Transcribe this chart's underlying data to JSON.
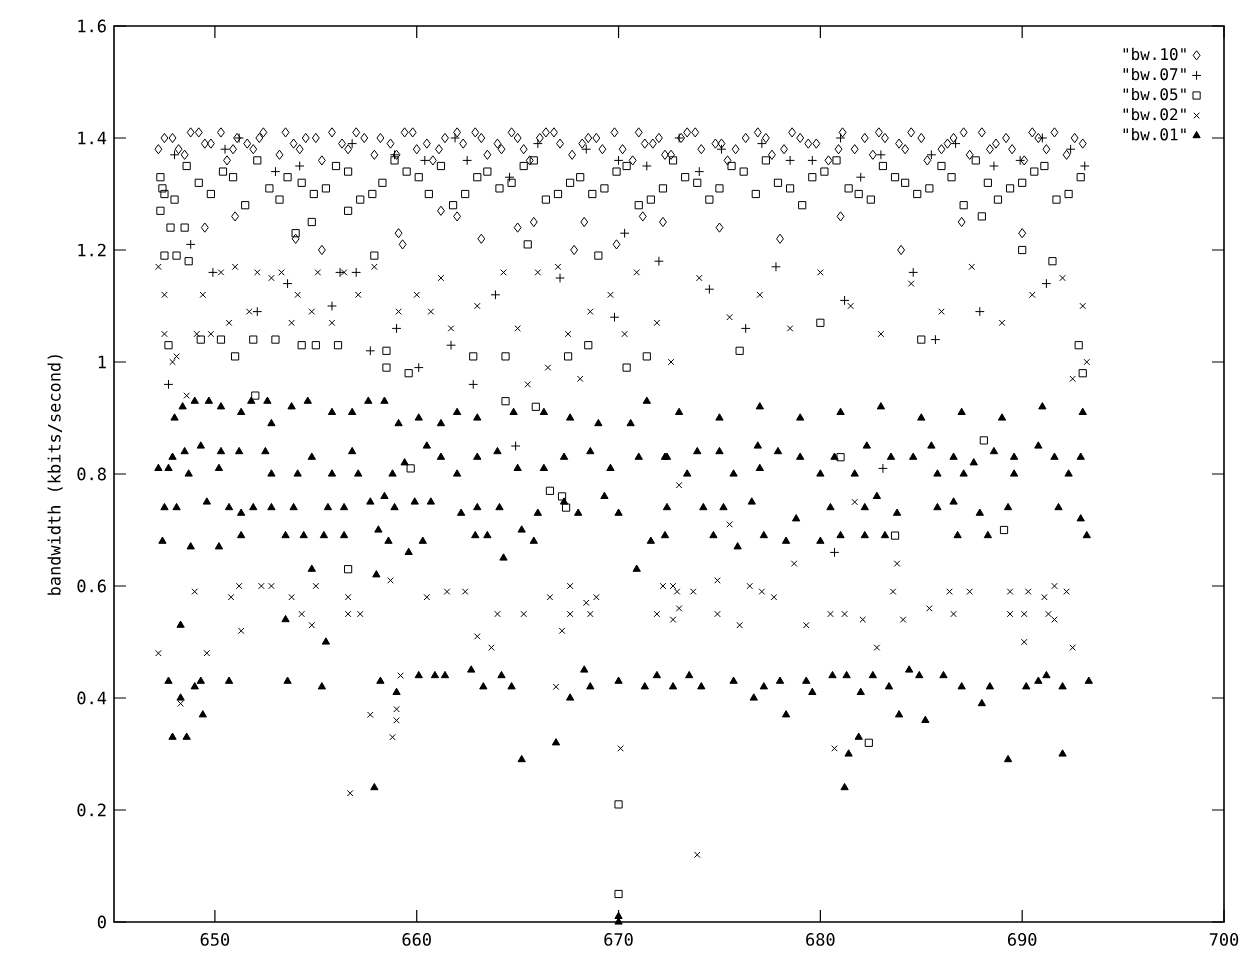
{
  "chart_data": {
    "type": "scatter",
    "ylabel": "bandwidth (kbits/second)",
    "xlim": [
      645,
      700
    ],
    "ylim": [
      0,
      1.6
    ],
    "xticks": [
      650,
      660,
      670,
      680,
      690,
      700
    ],
    "yticks": [
      0,
      0.2,
      0.4,
      0.6,
      0.8,
      1,
      1.2,
      1.4,
      1.6
    ],
    "grid": false,
    "legend": "top right",
    "series": [
      {
        "name": "\"bw.10\"",
        "color": "#000000",
        "marker": "diamond",
        "x": [
          649.5,
          651.0,
          654.0,
          655.3,
          659.1,
          659.3,
          661.2,
          662.0,
          663.2,
          665.0,
          665.8,
          667.8,
          668.3,
          669.9,
          671.2,
          672.2,
          675.0,
          678.0,
          681.0,
          684.0,
          687.0,
          690.0,
          647.2,
          647.9,
          648.5,
          649.2,
          649.8,
          650.6,
          651.1,
          651.9,
          652.4,
          653.2,
          653.9,
          654.5,
          655.3,
          655.8,
          656.6,
          657.4,
          657.9,
          658.7,
          659.4,
          660.0,
          660.8,
          661.4,
          662.3,
          662.9,
          663.5,
          664.2,
          665.0,
          665.6,
          666.4,
          667.1,
          667.7,
          668.5,
          669.2,
          669.8,
          670.7,
          671.3,
          672.0,
          672.6,
          673.4,
          674.1,
          674.8,
          675.4,
          676.3,
          676.9,
          677.6,
          678.2,
          679.0,
          679.8,
          680.4,
          681.1,
          681.7,
          682.6,
          683.2,
          683.9,
          684.5,
          685.3,
          686.0,
          686.6,
          687.4,
          688.0,
          688.7,
          689.5,
          690.1,
          690.8,
          691.6,
          692.2,
          693.0,
          647.5,
          648.2,
          648.8,
          649.5,
          650.3,
          650.9,
          651.6,
          652.2,
          653.5,
          654.2,
          655.0,
          656.3,
          657.0,
          658.2,
          659.0,
          659.8,
          660.5,
          661.1,
          662.0,
          663.2,
          664.0,
          664.7,
          665.3,
          666.1,
          666.8,
          668.2,
          668.9,
          670.2,
          671.0,
          671.7,
          672.3,
          673.1,
          673.8,
          675.1,
          675.8,
          677.3,
          678.6,
          679.4,
          680.9,
          682.2,
          682.9,
          684.2,
          685.0,
          686.3,
          687.1,
          688.4,
          689.2,
          690.5,
          691.2,
          692.6
        ],
        "values": [
          1.24,
          1.26,
          1.22,
          1.2,
          1.23,
          1.21,
          1.27,
          1.26,
          1.22,
          1.24,
          1.25,
          1.2,
          1.25,
          1.21,
          1.26,
          1.25,
          1.24,
          1.22,
          1.26,
          1.2,
          1.25,
          1.23,
          1.38,
          1.4,
          1.37,
          1.41,
          1.39,
          1.36,
          1.4,
          1.38,
          1.41,
          1.37,
          1.39,
          1.4,
          1.36,
          1.41,
          1.38,
          1.4,
          1.37,
          1.39,
          1.41,
          1.38,
          1.36,
          1.4,
          1.39,
          1.41,
          1.37,
          1.38,
          1.4,
          1.36,
          1.41,
          1.39,
          1.37,
          1.4,
          1.38,
          1.41,
          1.36,
          1.39,
          1.4,
          1.37,
          1.41,
          1.38,
          1.39,
          1.36,
          1.4,
          1.41,
          1.37,
          1.38,
          1.4,
          1.39,
          1.36,
          1.41,
          1.38,
          1.37,
          1.4,
          1.39,
          1.41,
          1.36,
          1.38,
          1.4,
          1.37,
          1.41,
          1.39,
          1.38,
          1.36,
          1.4,
          1.41,
          1.37,
          1.39,
          1.4,
          1.38,
          1.41,
          1.39,
          1.41,
          1.38,
          1.39,
          1.4,
          1.41,
          1.38,
          1.4,
          1.39,
          1.41,
          1.4,
          1.37,
          1.41,
          1.39,
          1.38,
          1.41,
          1.4,
          1.39,
          1.41,
          1.38,
          1.4,
          1.41,
          1.39,
          1.4,
          1.38,
          1.41,
          1.39,
          1.37,
          1.4,
          1.41,
          1.39,
          1.38,
          1.4,
          1.41,
          1.39,
          1.38,
          1.4,
          1.41,
          1.38,
          1.4,
          1.39,
          1.41,
          1.38,
          1.4,
          1.41,
          1.38,
          1.4
        ]
      },
      {
        "name": "\"bw.07\"",
        "color": "#000000",
        "marker": "plus",
        "x": [
          648.8,
          649.9,
          652.1,
          656.2,
          657.0,
          657.7,
          660.1,
          661.7,
          662.8,
          670.3,
          664.9,
          647.7,
          672.0,
          683.1,
          680.7,
          653.6,
          655.8,
          659.0,
          663.9,
          667.1,
          669.8,
          674.5,
          677.8,
          681.2,
          684.6,
          687.9,
          691.2,
          676.3,
          685.7,
          650.5,
          654.2,
          658.9,
          662.5,
          666.0,
          671.4,
          675.1,
          679.6,
          683.0,
          688.6,
          692.4,
          648.0,
          651.2,
          653.0,
          656.8,
          660.4,
          661.9,
          664.6,
          668.4,
          670.0,
          673.0,
          674.0,
          677.1,
          678.5,
          681.0,
          682.0,
          685.5,
          686.7,
          689.9,
          691.0,
          693.1
        ],
        "values": [
          1.21,
          1.16,
          1.09,
          1.16,
          1.16,
          1.02,
          0.99,
          1.03,
          0.96,
          1.23,
          0.85,
          0.96,
          1.18,
          0.81,
          0.66,
          1.14,
          1.1,
          1.06,
          1.12,
          1.15,
          1.08,
          1.13,
          1.17,
          1.11,
          1.16,
          1.09,
          1.14,
          1.06,
          1.04,
          1.38,
          1.35,
          1.37,
          1.36,
          1.39,
          1.35,
          1.38,
          1.36,
          1.37,
          1.35,
          1.38,
          1.37,
          1.4,
          1.34,
          1.39,
          1.36,
          1.4,
          1.33,
          1.38,
          1.36,
          1.4,
          1.34,
          1.39,
          1.36,
          1.4,
          1.33,
          1.37,
          1.39,
          1.36,
          1.4,
          1.35
        ]
      },
      {
        "name": "\"bw.05\"",
        "color": "#000000",
        "marker": "square",
        "x": [
          647.3,
          647.5,
          647.3,
          647.8,
          648.5,
          647.5,
          648.1,
          648.7,
          647.7,
          649.3,
          650.3,
          651.0,
          651.9,
          653.0,
          654.3,
          655.0,
          656.1,
          652.0,
          654.0,
          654.8,
          656.6,
          657.9,
          658.5,
          659.6,
          658.5,
          662.8,
          664.4,
          665.5,
          667.5,
          668.5,
          669.0,
          670.4,
          671.4,
          664.4,
          665.9,
          656.6,
          659.7,
          666.6,
          667.2,
          667.4,
          670.0,
          670.0,
          681.0,
          683.7,
          689.1,
          682.4,
          688.1,
          676.0,
          680.0,
          685.0,
          690.0,
          691.5,
          692.8,
          693.0,
          688.0,
          648.0,
          649.2,
          650.4,
          651.5,
          652.7,
          653.6,
          654.9,
          656.0,
          657.2,
          658.3,
          659.5,
          660.6,
          661.8,
          663.0,
          664.1,
          665.3,
          666.4,
          667.6,
          668.7,
          669.9,
          671.0,
          672.2,
          673.3,
          674.5,
          675.6,
          676.8,
          677.9,
          679.1,
          680.2,
          681.4,
          682.5,
          683.7,
          684.8,
          686.0,
          687.1,
          688.3,
          689.4,
          690.6,
          691.7,
          692.9,
          647.4,
          648.6,
          649.8,
          650.9,
          652.1,
          653.2,
          654.3,
          655.5,
          656.6,
          657.8,
          658.9,
          660.1,
          661.2,
          662.4,
          663.5,
          664.7,
          665.8,
          667.0,
          668.1,
          669.3,
          670.4,
          671.6,
          672.7,
          673.9,
          675.0,
          676.2,
          677.3,
          678.5,
          679.6,
          680.8,
          681.9,
          683.1,
          684.2,
          685.4,
          686.5,
          687.7,
          688.8,
          690.0,
          691.1,
          692.3
        ],
        "values": [
          1.27,
          1.3,
          1.33,
          1.24,
          1.24,
          1.19,
          1.19,
          1.18,
          1.03,
          1.04,
          1.04,
          1.01,
          1.04,
          1.04,
          1.03,
          1.03,
          1.03,
          0.94,
          1.23,
          1.25,
          1.27,
          1.19,
          0.99,
          0.98,
          1.02,
          1.01,
          1.01,
          1.21,
          1.01,
          1.03,
          1.19,
          0.99,
          1.01,
          0.93,
          0.92,
          0.63,
          0.81,
          0.77,
          0.76,
          0.74,
          0.21,
          0.05,
          0.83,
          0.69,
          0.7,
          0.32,
          0.86,
          1.02,
          1.07,
          1.04,
          1.2,
          1.18,
          1.03,
          0.98,
          1.26,
          1.29,
          1.32,
          1.34,
          1.28,
          1.31,
          1.33,
          1.3,
          1.35,
          1.29,
          1.32,
          1.34,
          1.3,
          1.28,
          1.33,
          1.31,
          1.35,
          1.29,
          1.32,
          1.3,
          1.34,
          1.28,
          1.31,
          1.33,
          1.29,
          1.35,
          1.3,
          1.32,
          1.28,
          1.34,
          1.31,
          1.29,
          1.33,
          1.3,
          1.35,
          1.28,
          1.32,
          1.31,
          1.34,
          1.29,
          1.33,
          1.31,
          1.35,
          1.3,
          1.33,
          1.36,
          1.29,
          1.32,
          1.31,
          1.34,
          1.3,
          1.36,
          1.33,
          1.35,
          1.3,
          1.34,
          1.32,
          1.36,
          1.3,
          1.33,
          1.31,
          1.35,
          1.29,
          1.36,
          1.32,
          1.31,
          1.34,
          1.36,
          1.31,
          1.33,
          1.36,
          1.3,
          1.35,
          1.32,
          1.31,
          1.33,
          1.36,
          1.29,
          1.32,
          1.35,
          1.3
        ]
      },
      {
        "name": "\"bw.02\"",
        "color": "#000000",
        "marker": "cross",
        "x": [
          647.2,
          649.6,
          649.0,
          650.8,
          651.2,
          651.3,
          652.3,
          652.8,
          653.8,
          654.3,
          654.8,
          655.0,
          656.6,
          656.6,
          657.2,
          658.7,
          660.5,
          661.5,
          662.4,
          663.0,
          663.7,
          664.0,
          665.3,
          666.6,
          667.6,
          667.2,
          667.6,
          668.4,
          668.9,
          668.6,
          672.7,
          672.7,
          648.3,
          659.2,
          666.9,
          659.0,
          659.0,
          658.8,
          657.7,
          656.7,
          670.1,
          673.0,
          681.7,
          675.5,
          678.7,
          683.8,
          672.2,
          672.9,
          673.7,
          674.9,
          676.5,
          677.1,
          677.7,
          671.9,
          673.0,
          674.9,
          676.0,
          679.3,
          680.5,
          681.2,
          682.1,
          684.1,
          685.4,
          686.6,
          683.6,
          686.4,
          687.4,
          689.4,
          690.3,
          691.1,
          691.6,
          692.2,
          689.4,
          690.1,
          691.3,
          691.6,
          682.8,
          690.1,
          692.5,
          680.7,
          673.9,
          647.2,
          647.5,
          647.5,
          648.1,
          647.9,
          648.6,
          649.1,
          649.4,
          649.8,
          650.3,
          650.7,
          651.0,
          651.7,
          652.1,
          652.8,
          653.3,
          653.8,
          654.1,
          654.8,
          655.1,
          655.8,
          656.4,
          657.1,
          657.9,
          659.1,
          660.0,
          660.7,
          661.2,
          661.7,
          663.0,
          664.3,
          665.0,
          666.0,
          666.5,
          667.0,
          667.5,
          668.1,
          668.6,
          669.6,
          670.3,
          670.9,
          671.9,
          672.6,
          665.5,
          674.0,
          675.5,
          677.0,
          678.5,
          680.0,
          681.5,
          683.0,
          684.5,
          686.0,
          687.5,
          689.0,
          690.5,
          692.0,
          693.0,
          693.2,
          692.5
        ],
        "values": [
          0.48,
          0.48,
          0.59,
          0.58,
          0.6,
          0.52,
          0.6,
          0.6,
          0.58,
          0.55,
          0.53,
          0.6,
          0.58,
          0.55,
          0.55,
          0.61,
          0.58,
          0.59,
          0.59,
          0.51,
          0.49,
          0.55,
          0.55,
          0.58,
          0.6,
          0.52,
          0.55,
          0.57,
          0.58,
          0.55,
          0.6,
          0.54,
          0.39,
          0.44,
          0.42,
          0.38,
          0.36,
          0.33,
          0.37,
          0.23,
          0.31,
          0.78,
          0.75,
          0.71,
          0.64,
          0.64,
          0.6,
          0.59,
          0.59,
          0.61,
          0.6,
          0.59,
          0.58,
          0.55,
          0.56,
          0.55,
          0.53,
          0.53,
          0.55,
          0.55,
          0.54,
          0.54,
          0.56,
          0.55,
          0.59,
          0.59,
          0.59,
          0.59,
          0.59,
          0.58,
          0.6,
          0.59,
          0.55,
          0.55,
          0.55,
          0.54,
          0.49,
          0.5,
          0.49,
          0.31,
          0.12,
          1.17,
          1.12,
          1.05,
          1.01,
          1.0,
          0.94,
          1.05,
          1.12,
          1.05,
          1.16,
          1.07,
          1.17,
          1.09,
          1.16,
          1.15,
          1.16,
          1.07,
          1.12,
          1.09,
          1.16,
          1.07,
          1.16,
          1.12,
          1.17,
          1.09,
          1.12,
          1.09,
          1.15,
          1.06,
          1.1,
          1.16,
          1.06,
          1.16,
          0.99,
          1.17,
          1.05,
          0.97,
          1.09,
          1.12,
          1.05,
          1.16,
          1.07,
          1.0,
          0.96,
          1.15,
          1.08,
          1.12,
          1.06,
          1.16,
          1.1,
          1.05,
          1.14,
          1.09,
          1.17,
          1.07,
          1.12,
          1.15,
          1.1,
          1.0,
          0.97
        ]
      },
      {
        "name": "\"bw.01\"",
        "color": "#000000",
        "marker": "triangle",
        "x": [
          647.2,
          647.7,
          647.9,
          648.5,
          648.7,
          649.3,
          650.2,
          650.3,
          651.2,
          652.5,
          652.8,
          654.1,
          654.8,
          655.8,
          656.8,
          657.1,
          658.8,
          659.4,
          660.5,
          661.2,
          662.0,
          663.0,
          664.0,
          665.0,
          666.3,
          667.3,
          668.6,
          669.6,
          671.0,
          672.3,
          672.4,
          673.9,
          675.0,
          676.9,
          677.9,
          679.0,
          680.7,
          682.3,
          683.5,
          684.6,
          685.5,
          686.6,
          687.6,
          688.6,
          689.6,
          690.8,
          691.6,
          692.9,
          673.4,
          675.7,
          677.0,
          680.0,
          681.7,
          685.8,
          687.1,
          689.6,
          692.3,
          647.5,
          648.1,
          649.6,
          650.7,
          651.3,
          651.9,
          652.8,
          653.9,
          655.6,
          656.4,
          657.7,
          658.4,
          658.9,
          659.9,
          660.7,
          662.2,
          663.0,
          664.1,
          666.0,
          667.3,
          668.0,
          669.3,
          670.0,
          672.4,
          674.2,
          675.2,
          676.6,
          678.8,
          680.5,
          682.2,
          682.8,
          683.8,
          685.8,
          686.6,
          687.9,
          689.3,
          691.8,
          692.9,
          647.4,
          648.8,
          650.2,
          651.3,
          653.5,
          654.4,
          655.4,
          656.4,
          658.1,
          658.6,
          659.6,
          660.3,
          662.9,
          663.5,
          664.3,
          665.2,
          665.8,
          671.6,
          672.3,
          674.7,
          675.9,
          677.2,
          678.3,
          680.0,
          681.0,
          682.2,
          683.2,
          686.8,
          688.3,
          693.2,
          654.8,
          658.0,
          655.5,
          648.3,
          653.5,
          670.9,
          647.7,
          648.3,
          649.0,
          649.3,
          649.4,
          647.9,
          648.6,
          650.7,
          653.6,
          655.3,
          658.2,
          659.0,
          660.1,
          660.9,
          661.4,
          662.7,
          663.3,
          664.2,
          664.7,
          665.2,
          666.9,
          667.6,
          668.3,
          668.6,
          670.0,
          671.3,
          671.9,
          657.9,
          670.0,
          670.0,
          672.7,
          673.5,
          674.1,
          675.7,
          676.7,
          677.2,
          678.0,
          679.3,
          679.6,
          680.6,
          681.3,
          682.0,
          682.6,
          683.4,
          684.4,
          684.9,
          686.1,
          687.0,
          688.0,
          688.4,
          690.2,
          690.8,
          691.2,
          692.0,
          693.3,
          678.3,
          683.9,
          685.2,
          681.9,
          681.4,
          689.3,
          692.0,
          681.2,
          648.0,
          648.4,
          649.0,
          649.7,
          650.3,
          651.3,
          651.8,
          652.6,
          652.8,
          653.8,
          654.6,
          655.8,
          656.8,
          657.6,
          658.4,
          659.1,
          660.1,
          661.2,
          662.0,
          663.0,
          664.8,
          666.3,
          667.6,
          669.0,
          670.6,
          671.4,
          673.0,
          675.0,
          677.0,
          679.0,
          681.0,
          683.0,
          685.0,
          687.0,
          689.0,
          691.0,
          693.0
        ],
        "values": [
          0.81,
          0.81,
          0.83,
          0.84,
          0.8,
          0.85,
          0.81,
          0.84,
          0.84,
          0.84,
          0.8,
          0.8,
          0.83,
          0.8,
          0.84,
          0.8,
          0.8,
          0.82,
          0.85,
          0.83,
          0.8,
          0.83,
          0.84,
          0.81,
          0.81,
          0.83,
          0.84,
          0.81,
          0.83,
          0.83,
          0.83,
          0.84,
          0.84,
          0.85,
          0.84,
          0.83,
          0.83,
          0.85,
          0.83,
          0.83,
          0.85,
          0.83,
          0.82,
          0.84,
          0.83,
          0.85,
          0.83,
          0.83,
          0.8,
          0.8,
          0.81,
          0.8,
          0.8,
          0.8,
          0.8,
          0.8,
          0.8,
          0.74,
          0.74,
          0.75,
          0.74,
          0.73,
          0.74,
          0.74,
          0.74,
          0.74,
          0.74,
          0.75,
          0.76,
          0.74,
          0.75,
          0.75,
          0.73,
          0.74,
          0.74,
          0.73,
          0.75,
          0.73,
          0.76,
          0.73,
          0.74,
          0.74,
          0.74,
          0.75,
          0.72,
          0.74,
          0.74,
          0.76,
          0.73,
          0.74,
          0.75,
          0.73,
          0.74,
          0.74,
          0.72,
          0.68,
          0.67,
          0.67,
          0.69,
          0.69,
          0.69,
          0.69,
          0.69,
          0.7,
          0.68,
          0.66,
          0.68,
          0.69,
          0.69,
          0.65,
          0.7,
          0.68,
          0.68,
          0.69,
          0.69,
          0.67,
          0.69,
          0.68,
          0.68,
          0.69,
          0.69,
          0.69,
          0.69,
          0.69,
          0.69,
          0.63,
          0.62,
          0.5,
          0.53,
          0.54,
          0.63,
          0.43,
          0.4,
          0.42,
          0.43,
          0.37,
          0.33,
          0.33,
          0.43,
          0.43,
          0.42,
          0.43,
          0.41,
          0.44,
          0.44,
          0.44,
          0.45,
          0.42,
          0.44,
          0.42,
          0.29,
          0.32,
          0.4,
          0.45,
          0.42,
          0.43,
          0.42,
          0.44,
          0.24,
          0.01,
          0.0,
          0.42,
          0.44,
          0.42,
          0.43,
          0.4,
          0.42,
          0.43,
          0.43,
          0.41,
          0.44,
          0.44,
          0.41,
          0.44,
          0.42,
          0.45,
          0.44,
          0.44,
          0.42,
          0.39,
          0.42,
          0.42,
          0.43,
          0.44,
          0.42,
          0.43,
          0.37,
          0.37,
          0.36,
          0.33,
          0.3,
          0.29,
          0.3,
          0.24,
          0.9,
          0.92,
          0.93,
          0.93,
          0.92,
          0.91,
          0.93,
          0.93,
          0.89,
          0.92,
          0.93,
          0.91,
          0.91,
          0.93,
          0.93,
          0.89,
          0.9,
          0.89,
          0.91,
          0.9,
          0.91,
          0.91,
          0.9,
          0.89,
          0.89,
          0.93,
          0.91,
          0.9,
          0.92,
          0.9,
          0.91,
          0.92,
          0.9,
          0.91,
          0.9,
          0.92,
          0.91
        ]
      }
    ]
  }
}
